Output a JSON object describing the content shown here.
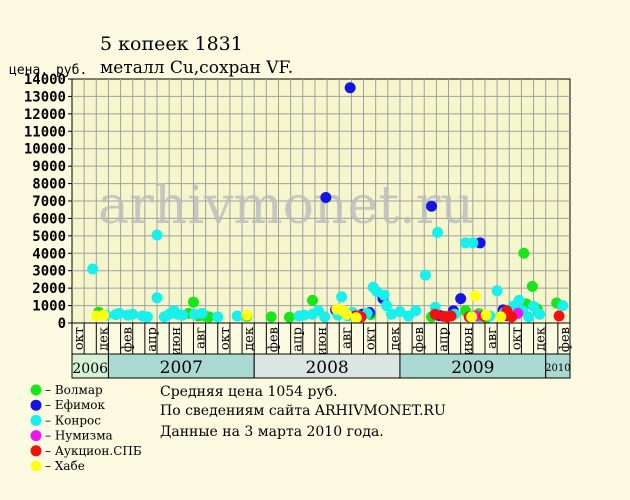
{
  "chart_data": {
    "type": "scatter",
    "title": "5 копеек 1831",
    "subtitle": "металл Cu,сохран VF.",
    "ylabel": "цена, руб.",
    "ylim": [
      0,
      14000
    ],
    "yticks": [
      0,
      1000,
      2000,
      3000,
      4000,
      5000,
      6000,
      7000,
      8000,
      9000,
      10000,
      11000,
      12000,
      13000,
      14000
    ],
    "x_unit": "month index (0 = окт 2006)",
    "xlim": [
      0,
      41
    ],
    "grid": true,
    "watermark": "arhivmonet.ru",
    "month_labels": [
      "окт",
      "дек",
      "фев",
      "апр",
      "июн",
      "авг",
      "окт",
      "дек",
      "фев",
      "апр",
      "июн",
      "авг",
      "окт",
      "дек",
      "фев",
      "апр",
      "июн",
      "авг",
      "окт",
      "дек",
      "фев"
    ],
    "years": [
      {
        "label": "2006",
        "from": 0,
        "to": 3,
        "color": "#d6f2d6"
      },
      {
        "label": "2007",
        "from": 3,
        "to": 15,
        "color": "#aad9d2"
      },
      {
        "label": "2008",
        "from": 15,
        "to": 27,
        "color": "#dbe6e2"
      },
      {
        "label": "2009",
        "from": 27,
        "to": 39,
        "color": "#aad9d2"
      },
      {
        "label": "2010",
        "from": 39,
        "to": 41,
        "color": "#aad9d2"
      }
    ],
    "series": [
      {
        "name": "Волмар",
        "color": "#19e619",
        "points": [
          [
            2.2,
            620
          ],
          [
            9.6,
            550
          ],
          [
            10.0,
            1200
          ],
          [
            10.4,
            400
          ],
          [
            11.0,
            380
          ],
          [
            11.3,
            350
          ],
          [
            14.4,
            380
          ],
          [
            16.4,
            350
          ],
          [
            17.9,
            330
          ],
          [
            19.8,
            1300
          ],
          [
            24.6,
            480
          ],
          [
            29.6,
            350
          ],
          [
            32.4,
            700
          ],
          [
            32.9,
            400
          ],
          [
            33.5,
            540
          ],
          [
            34.1,
            300
          ],
          [
            35.3,
            400
          ],
          [
            35.8,
            480
          ],
          [
            36.5,
            1000
          ],
          [
            37.2,
            4000
          ],
          [
            37.4,
            1100
          ],
          [
            37.9,
            2100
          ],
          [
            38.3,
            800
          ],
          [
            39.9,
            1150
          ]
        ]
      },
      {
        "name": "Ефимок",
        "color": "#1414e6",
        "points": [
          [
            20.9,
            7200
          ],
          [
            21.7,
            750
          ],
          [
            22.9,
            13500
          ],
          [
            23.9,
            500
          ],
          [
            24.5,
            600
          ],
          [
            25.6,
            1400
          ],
          [
            29.6,
            6700
          ],
          [
            30.3,
            420
          ],
          [
            31.4,
            700
          ],
          [
            32.0,
            1400
          ],
          [
            33.6,
            4600
          ],
          [
            35.5,
            750
          ],
          [
            35.8,
            420
          ]
        ]
      },
      {
        "name": "Конрос",
        "color": "#17f0ec",
        "points": [
          [
            1.7,
            3100
          ],
          [
            2.8,
            450
          ],
          [
            3.6,
            480
          ],
          [
            3.9,
            550
          ],
          [
            4.6,
            450
          ],
          [
            5.0,
            500
          ],
          [
            5.8,
            400
          ],
          [
            6.2,
            350
          ],
          [
            7.0,
            1450
          ],
          [
            7.0,
            5050
          ],
          [
            7.6,
            350
          ],
          [
            8.0,
            500
          ],
          [
            8.4,
            700
          ],
          [
            8.7,
            500
          ],
          [
            9.1,
            450
          ],
          [
            10.1,
            500
          ],
          [
            10.7,
            550
          ],
          [
            12.0,
            350
          ],
          [
            13.6,
            400
          ],
          [
            18.7,
            400
          ],
          [
            19.1,
            450
          ],
          [
            19.8,
            500
          ],
          [
            20.3,
            700
          ],
          [
            20.8,
            350
          ],
          [
            21.9,
            450
          ],
          [
            22.2,
            1500
          ],
          [
            22.7,
            400
          ],
          [
            23.1,
            600
          ],
          [
            24.3,
            550
          ],
          [
            24.8,
            2050
          ],
          [
            25.1,
            1800
          ],
          [
            25.7,
            1600
          ],
          [
            25.9,
            1000
          ],
          [
            26.3,
            500
          ],
          [
            27.0,
            650
          ],
          [
            27.7,
            400
          ],
          [
            28.3,
            700
          ],
          [
            29.1,
            2750
          ],
          [
            29.9,
            900
          ],
          [
            30.1,
            5200
          ],
          [
            30.9,
            400
          ],
          [
            31.5,
            500
          ],
          [
            32.4,
            4600
          ],
          [
            33.0,
            4600
          ],
          [
            33.6,
            350
          ],
          [
            34.4,
            400
          ],
          [
            35.0,
            1850
          ],
          [
            35.6,
            600
          ],
          [
            36.3,
            950
          ],
          [
            36.8,
            1300
          ],
          [
            37.1,
            700
          ],
          [
            37.6,
            350
          ],
          [
            38.0,
            950
          ],
          [
            38.5,
            500
          ],
          [
            40.4,
            1000
          ]
        ]
      },
      {
        "name": "Нумизма",
        "color": "#f015f0",
        "points": [
          [
            23.6,
            400
          ],
          [
            33.3,
            400
          ],
          [
            36.7,
            550
          ]
        ]
      },
      {
        "name": "Аукцион.СПБ",
        "color": "#f51010",
        "points": [
          [
            23.3,
            400
          ],
          [
            23.8,
            350
          ],
          [
            29.9,
            500
          ],
          [
            30.6,
            380
          ],
          [
            30.9,
            350
          ],
          [
            31.2,
            400
          ],
          [
            32.7,
            350
          ],
          [
            33.9,
            400
          ],
          [
            35.8,
            700
          ],
          [
            35.6,
            450
          ],
          [
            36.2,
            350
          ],
          [
            40.1,
            400
          ]
        ]
      },
      {
        "name": "Хабе",
        "color": "#ffff14",
        "points": [
          [
            2.0,
            400
          ],
          [
            2.6,
            450
          ],
          [
            14.4,
            450
          ],
          [
            21.8,
            800
          ],
          [
            22.3,
            700
          ],
          [
            22.6,
            500
          ],
          [
            23.4,
            300
          ],
          [
            32.9,
            350
          ],
          [
            33.2,
            1550
          ],
          [
            34.1,
            450
          ],
          [
            35.3,
            350
          ]
        ]
      }
    ]
  },
  "footer": {
    "avg": "Средняя цена 1054 руб.",
    "source": "По  сведениям сайта ARHIVMONET.RU",
    "date": "Данные на 3 марта 2010 года."
  }
}
